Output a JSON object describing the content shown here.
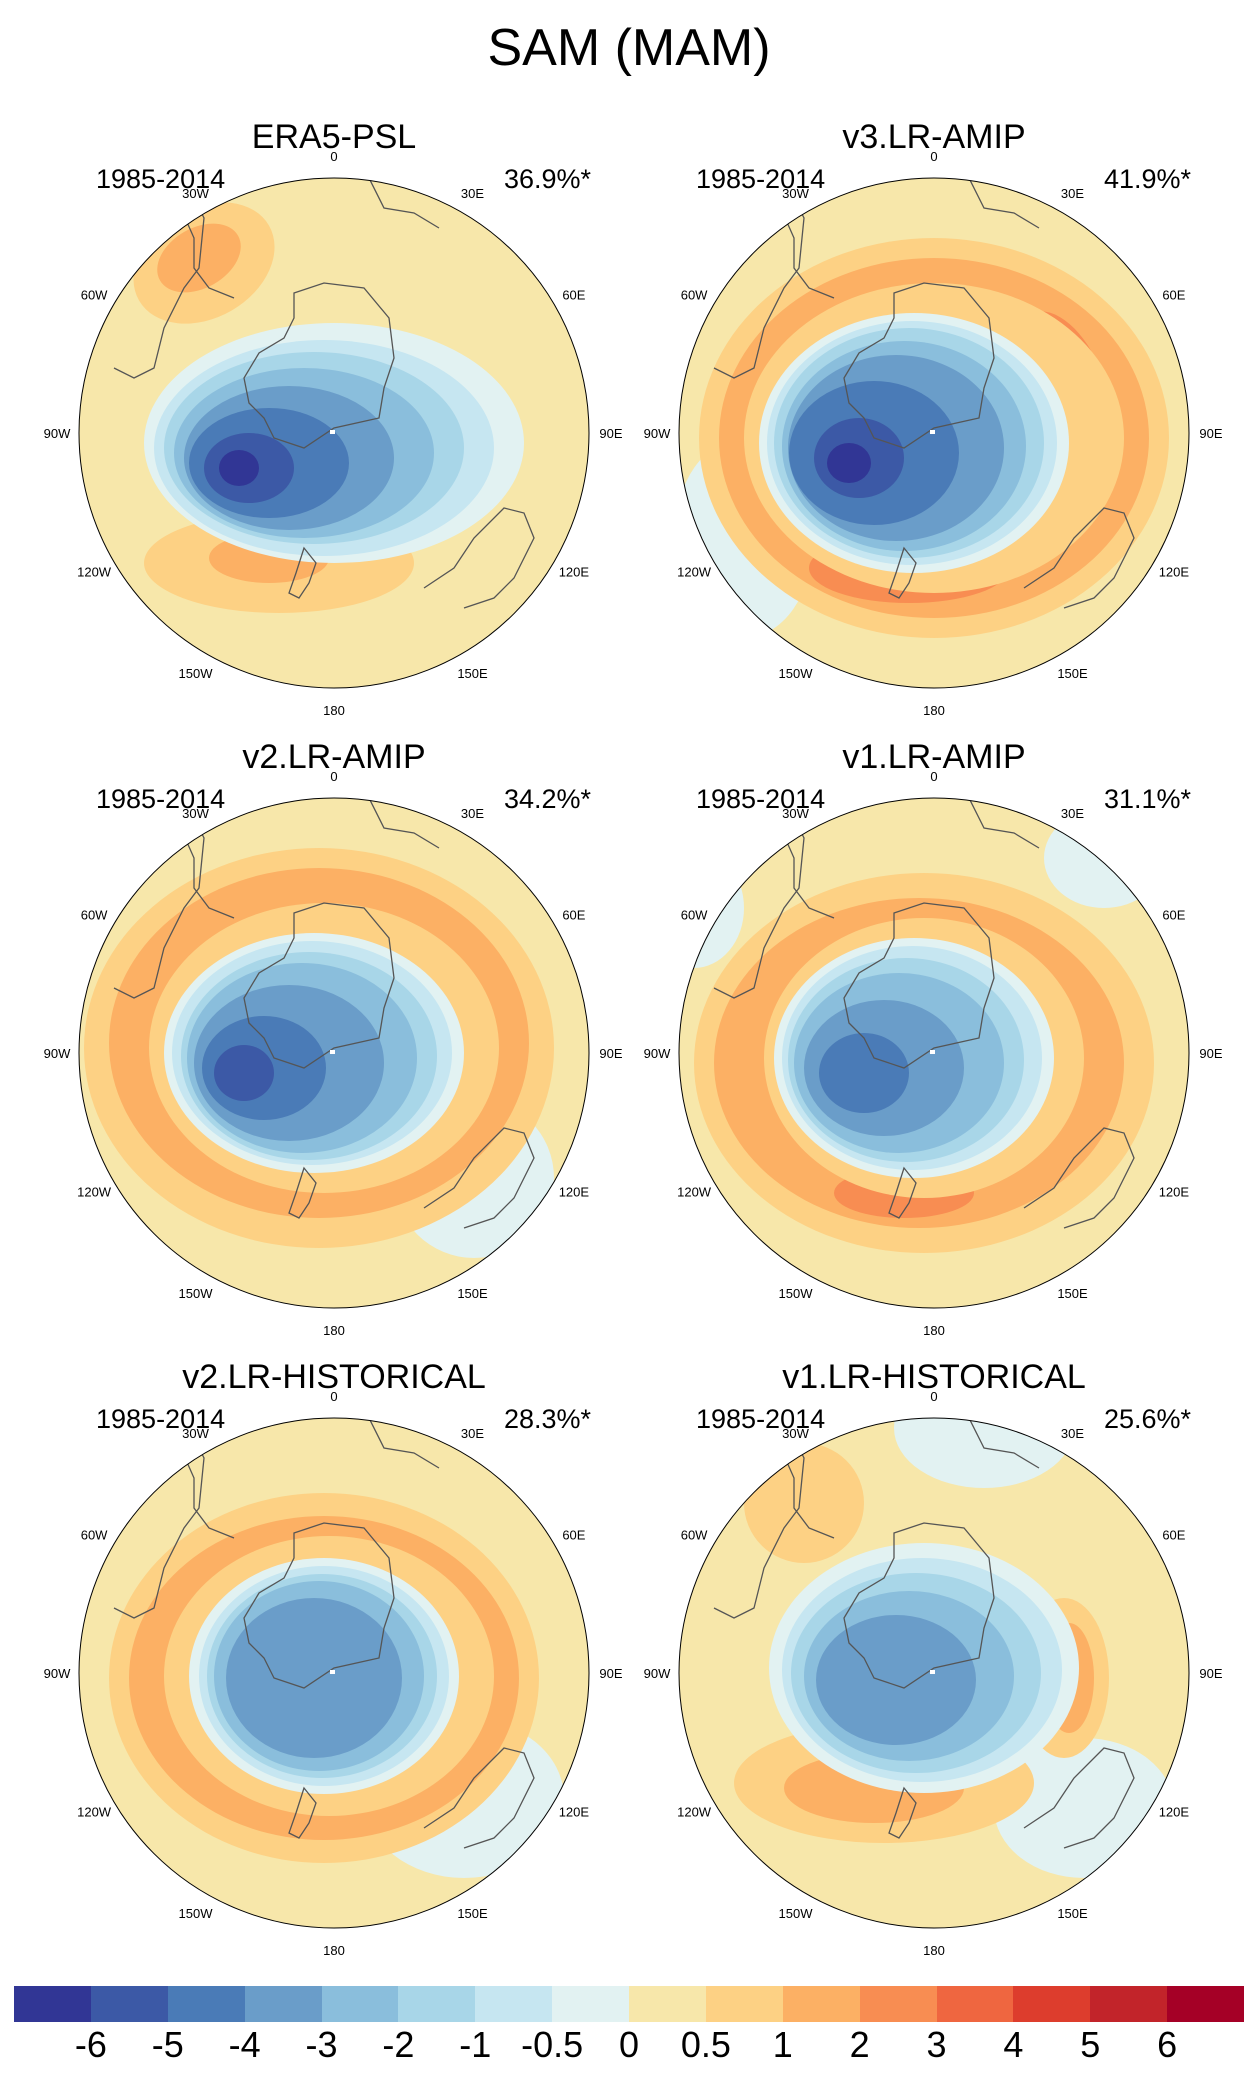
{
  "title": "SAM (MAM)",
  "panels": [
    {
      "title": "ERA5-PSL",
      "period": "1985-2014",
      "variance": "36.9%*",
      "variant": 0
    },
    {
      "title": "v3.LR-AMIP",
      "period": "1985-2014",
      "variance": "41.9%*",
      "variant": 1
    },
    {
      "title": "v2.LR-AMIP",
      "period": "1985-2014",
      "variance": "34.2%*",
      "variant": 2
    },
    {
      "title": "v1.LR-AMIP",
      "period": "1985-2014",
      "variance": "31.1%*",
      "variant": 3
    },
    {
      "title": "v2.LR-HISTORICAL",
      "period": "1985-2014",
      "variance": "28.3%*",
      "variant": 4
    },
    {
      "title": "v1.LR-HISTORICAL",
      "period": "1985-2014",
      "variance": "25.6%*",
      "variant": 5
    }
  ],
  "longitude_labels": [
    "0",
    "30E",
    "60E",
    "90E",
    "120E",
    "150E",
    "180",
    "150W",
    "120W",
    "90W",
    "60W",
    "30W"
  ],
  "colorbar": {
    "colors": [
      "#313695",
      "#3c59a6",
      "#4a7bb7",
      "#6a9dc9",
      "#8abedc",
      "#a8d6e8",
      "#c6e6f1",
      "#e2f2f2",
      "#f7e7aa",
      "#fdd184",
      "#fcb064",
      "#f88d52",
      "#ef6640",
      "#dd3d2d",
      "#c2242a",
      "#a50026"
    ],
    "tick_labels": [
      "-6",
      "-5",
      "-4",
      "-3",
      "-2",
      "-1",
      "-0.5",
      "0",
      "0.5",
      "1",
      "2",
      "3",
      "4",
      "5",
      "6"
    ]
  }
}
